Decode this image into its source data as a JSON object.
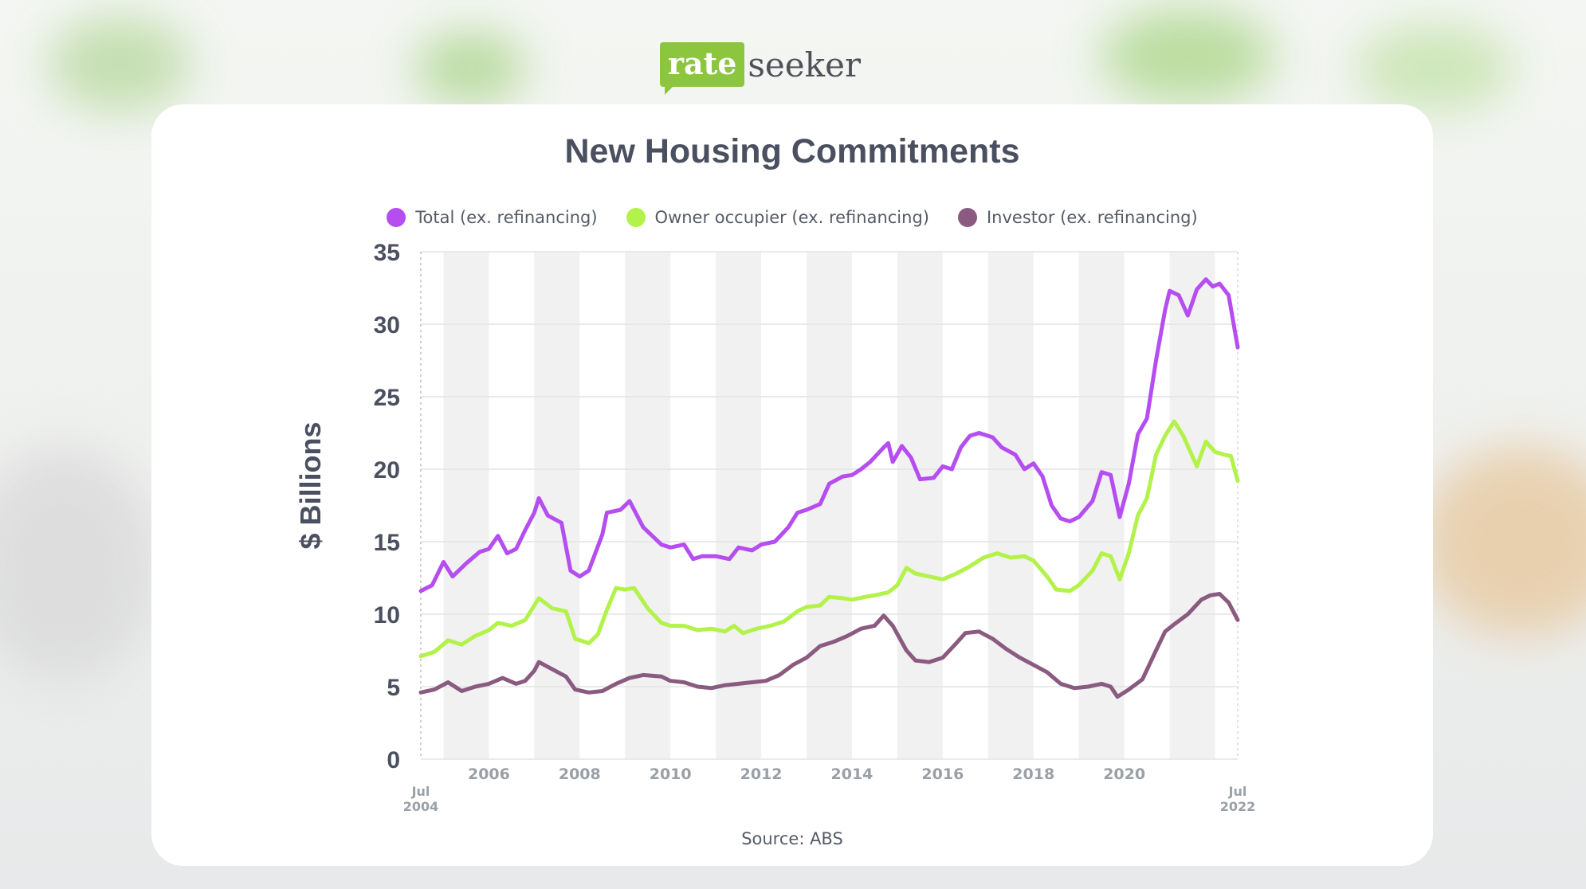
{
  "brand": {
    "logo_rate": "rate",
    "logo_seeker": "seeker"
  },
  "source": "Source: ABS",
  "colors": {
    "total": "#b54df0",
    "owner": "#b2f24a",
    "investor": "#8a5a80",
    "band": "#f1f1f1",
    "grid": "#e4e4e4",
    "brand_green": "#8cc63f"
  },
  "chart_data": {
    "type": "line",
    "title": "New Housing Commitments",
    "ylabel": "$ Billions",
    "xlabel": "",
    "ylim": [
      0,
      35
    ],
    "xlim": [
      2004.5,
      2022.5
    ],
    "yticks": [
      0,
      5,
      10,
      15,
      20,
      25,
      30,
      35
    ],
    "xticks": [
      {
        "x": 2004.5,
        "label": "Jul",
        "sublabel": "2004"
      },
      {
        "x": 2006,
        "label": "2006",
        "sublabel": ""
      },
      {
        "x": 2008,
        "label": "2008",
        "sublabel": ""
      },
      {
        "x": 2010,
        "label": "2010",
        "sublabel": ""
      },
      {
        "x": 2012,
        "label": "2012",
        "sublabel": ""
      },
      {
        "x": 2014,
        "label": "2014",
        "sublabel": ""
      },
      {
        "x": 2016,
        "label": "2016",
        "sublabel": ""
      },
      {
        "x": 2018,
        "label": "2018",
        "sublabel": ""
      },
      {
        "x": 2020,
        "label": "2020",
        "sublabel": ""
      },
      {
        "x": 2022.5,
        "label": "Jul",
        "sublabel": "2022"
      }
    ],
    "grid": true,
    "legend_position": "top",
    "series": [
      {
        "name": "Total (ex. refinancing)",
        "color": "#b54df0",
        "points": [
          [
            2004.5,
            11.6
          ],
          [
            2004.75,
            12.0
          ],
          [
            2005.0,
            13.6
          ],
          [
            2005.2,
            12.6
          ],
          [
            2005.5,
            13.5
          ],
          [
            2005.8,
            14.3
          ],
          [
            2006.0,
            14.5
          ],
          [
            2006.2,
            15.4
          ],
          [
            2006.4,
            14.2
          ],
          [
            2006.6,
            14.5
          ],
          [
            2006.8,
            15.8
          ],
          [
            2007.0,
            17.0
          ],
          [
            2007.1,
            18.0
          ],
          [
            2007.3,
            16.8
          ],
          [
            2007.6,
            16.3
          ],
          [
            2007.8,
            13.0
          ],
          [
            2008.0,
            12.6
          ],
          [
            2008.2,
            13.0
          ],
          [
            2008.5,
            15.5
          ],
          [
            2008.6,
            17.0
          ],
          [
            2008.9,
            17.2
          ],
          [
            2009.1,
            17.8
          ],
          [
            2009.4,
            16.0
          ],
          [
            2009.8,
            14.8
          ],
          [
            2010.0,
            14.6
          ],
          [
            2010.3,
            14.8
          ],
          [
            2010.5,
            13.8
          ],
          [
            2010.7,
            14.0
          ],
          [
            2011.0,
            14.0
          ],
          [
            2011.3,
            13.8
          ],
          [
            2011.5,
            14.6
          ],
          [
            2011.8,
            14.4
          ],
          [
            2012.0,
            14.8
          ],
          [
            2012.3,
            15.0
          ],
          [
            2012.6,
            16.0
          ],
          [
            2012.8,
            17.0
          ],
          [
            2013.0,
            17.2
          ],
          [
            2013.3,
            17.6
          ],
          [
            2013.5,
            19.0
          ],
          [
            2013.8,
            19.5
          ],
          [
            2014.0,
            19.6
          ],
          [
            2014.2,
            20.0
          ],
          [
            2014.4,
            20.5
          ],
          [
            2014.7,
            21.5
          ],
          [
            2014.8,
            21.8
          ],
          [
            2014.9,
            20.5
          ],
          [
            2015.1,
            21.6
          ],
          [
            2015.3,
            20.8
          ],
          [
            2015.5,
            19.3
          ],
          [
            2015.8,
            19.4
          ],
          [
            2016.0,
            20.2
          ],
          [
            2016.2,
            20.0
          ],
          [
            2016.4,
            21.5
          ],
          [
            2016.6,
            22.3
          ],
          [
            2016.8,
            22.5
          ],
          [
            2017.1,
            22.2
          ],
          [
            2017.3,
            21.5
          ],
          [
            2017.6,
            21.0
          ],
          [
            2017.8,
            20.0
          ],
          [
            2018.0,
            20.4
          ],
          [
            2018.2,
            19.5
          ],
          [
            2018.4,
            17.5
          ],
          [
            2018.6,
            16.6
          ],
          [
            2018.8,
            16.4
          ],
          [
            2019.0,
            16.7
          ],
          [
            2019.3,
            17.8
          ],
          [
            2019.5,
            19.8
          ],
          [
            2019.7,
            19.6
          ],
          [
            2019.9,
            16.7
          ],
          [
            2020.1,
            19.0
          ],
          [
            2020.3,
            22.4
          ],
          [
            2020.5,
            23.5
          ],
          [
            2020.7,
            27.5
          ],
          [
            2020.9,
            31.0
          ],
          [
            2021.0,
            32.3
          ],
          [
            2021.2,
            32.0
          ],
          [
            2021.4,
            30.6
          ],
          [
            2021.6,
            32.4
          ],
          [
            2021.8,
            33.1
          ],
          [
            2021.95,
            32.6
          ],
          [
            2022.1,
            32.8
          ],
          [
            2022.3,
            32.0
          ],
          [
            2022.5,
            28.4
          ]
        ]
      },
      {
        "name": "Owner occupier (ex. refinancing)",
        "color": "#b2f24a",
        "points": [
          [
            2004.5,
            7.1
          ],
          [
            2004.8,
            7.4
          ],
          [
            2005.1,
            8.2
          ],
          [
            2005.4,
            7.9
          ],
          [
            2005.7,
            8.5
          ],
          [
            2006.0,
            8.9
          ],
          [
            2006.2,
            9.4
          ],
          [
            2006.5,
            9.2
          ],
          [
            2006.8,
            9.6
          ],
          [
            2007.0,
            10.6
          ],
          [
            2007.1,
            11.1
          ],
          [
            2007.4,
            10.4
          ],
          [
            2007.7,
            10.2
          ],
          [
            2007.9,
            8.3
          ],
          [
            2008.2,
            8.0
          ],
          [
            2008.4,
            8.6
          ],
          [
            2008.6,
            10.3
          ],
          [
            2008.8,
            11.8
          ],
          [
            2009.0,
            11.7
          ],
          [
            2009.2,
            11.8
          ],
          [
            2009.5,
            10.4
          ],
          [
            2009.8,
            9.4
          ],
          [
            2010.0,
            9.2
          ],
          [
            2010.3,
            9.2
          ],
          [
            2010.6,
            8.9
          ],
          [
            2010.9,
            9.0
          ],
          [
            2011.2,
            8.8
          ],
          [
            2011.4,
            9.2
          ],
          [
            2011.6,
            8.7
          ],
          [
            2011.9,
            9.0
          ],
          [
            2012.2,
            9.2
          ],
          [
            2012.5,
            9.5
          ],
          [
            2012.8,
            10.2
          ],
          [
            2013.0,
            10.5
          ],
          [
            2013.3,
            10.6
          ],
          [
            2013.5,
            11.2
          ],
          [
            2013.8,
            11.1
          ],
          [
            2014.0,
            11.0
          ],
          [
            2014.3,
            11.2
          ],
          [
            2014.5,
            11.3
          ],
          [
            2014.8,
            11.5
          ],
          [
            2015.0,
            12.0
          ],
          [
            2015.2,
            13.2
          ],
          [
            2015.4,
            12.8
          ],
          [
            2015.7,
            12.6
          ],
          [
            2016.0,
            12.4
          ],
          [
            2016.3,
            12.8
          ],
          [
            2016.6,
            13.3
          ],
          [
            2016.9,
            13.9
          ],
          [
            2017.2,
            14.2
          ],
          [
            2017.5,
            13.9
          ],
          [
            2017.8,
            14.0
          ],
          [
            2018.0,
            13.7
          ],
          [
            2018.3,
            12.6
          ],
          [
            2018.5,
            11.7
          ],
          [
            2018.8,
            11.6
          ],
          [
            2019.0,
            12.0
          ],
          [
            2019.3,
            13.0
          ],
          [
            2019.5,
            14.2
          ],
          [
            2019.7,
            14.0
          ],
          [
            2019.9,
            12.4
          ],
          [
            2020.1,
            14.2
          ],
          [
            2020.3,
            16.8
          ],
          [
            2020.5,
            18.0
          ],
          [
            2020.7,
            21.0
          ],
          [
            2020.9,
            22.3
          ],
          [
            2021.1,
            23.3
          ],
          [
            2021.3,
            22.3
          ],
          [
            2021.6,
            20.2
          ],
          [
            2021.8,
            21.9
          ],
          [
            2022.0,
            21.2
          ],
          [
            2022.2,
            21.0
          ],
          [
            2022.35,
            20.9
          ],
          [
            2022.5,
            19.2
          ]
        ]
      },
      {
        "name": "Investor (ex. refinancing)",
        "color": "#8a5a80",
        "points": [
          [
            2004.5,
            4.6
          ],
          [
            2004.8,
            4.8
          ],
          [
            2005.1,
            5.3
          ],
          [
            2005.4,
            4.7
          ],
          [
            2005.7,
            5.0
          ],
          [
            2006.0,
            5.2
          ],
          [
            2006.3,
            5.6
          ],
          [
            2006.6,
            5.2
          ],
          [
            2006.8,
            5.4
          ],
          [
            2007.0,
            6.1
          ],
          [
            2007.1,
            6.7
          ],
          [
            2007.4,
            6.2
          ],
          [
            2007.7,
            5.7
          ],
          [
            2007.9,
            4.8
          ],
          [
            2008.2,
            4.6
          ],
          [
            2008.5,
            4.7
          ],
          [
            2008.8,
            5.2
          ],
          [
            2009.1,
            5.6
          ],
          [
            2009.4,
            5.8
          ],
          [
            2009.8,
            5.7
          ],
          [
            2010.0,
            5.4
          ],
          [
            2010.3,
            5.3
          ],
          [
            2010.6,
            5.0
          ],
          [
            2010.9,
            4.9
          ],
          [
            2011.2,
            5.1
          ],
          [
            2011.5,
            5.2
          ],
          [
            2011.8,
            5.3
          ],
          [
            2012.1,
            5.4
          ],
          [
            2012.4,
            5.8
          ],
          [
            2012.7,
            6.5
          ],
          [
            2013.0,
            7.0
          ],
          [
            2013.3,
            7.8
          ],
          [
            2013.6,
            8.1
          ],
          [
            2013.9,
            8.5
          ],
          [
            2014.2,
            9.0
          ],
          [
            2014.5,
            9.2
          ],
          [
            2014.7,
            9.9
          ],
          [
            2014.9,
            9.2
          ],
          [
            2015.2,
            7.5
          ],
          [
            2015.4,
            6.8
          ],
          [
            2015.7,
            6.7
          ],
          [
            2016.0,
            7.0
          ],
          [
            2016.3,
            8.0
          ],
          [
            2016.5,
            8.7
          ],
          [
            2016.8,
            8.8
          ],
          [
            2017.1,
            8.3
          ],
          [
            2017.4,
            7.6
          ],
          [
            2017.7,
            7.0
          ],
          [
            2018.0,
            6.5
          ],
          [
            2018.3,
            6.0
          ],
          [
            2018.6,
            5.2
          ],
          [
            2018.9,
            4.9
          ],
          [
            2019.2,
            5.0
          ],
          [
            2019.5,
            5.2
          ],
          [
            2019.7,
            5.0
          ],
          [
            2019.85,
            4.3
          ],
          [
            2020.1,
            4.8
          ],
          [
            2020.4,
            5.5
          ],
          [
            2020.7,
            7.5
          ],
          [
            2020.9,
            8.8
          ],
          [
            2021.1,
            9.3
          ],
          [
            2021.4,
            10.0
          ],
          [
            2021.7,
            11.0
          ],
          [
            2021.9,
            11.3
          ],
          [
            2022.1,
            11.4
          ],
          [
            2022.3,
            10.8
          ],
          [
            2022.5,
            9.6
          ]
        ]
      }
    ]
  }
}
